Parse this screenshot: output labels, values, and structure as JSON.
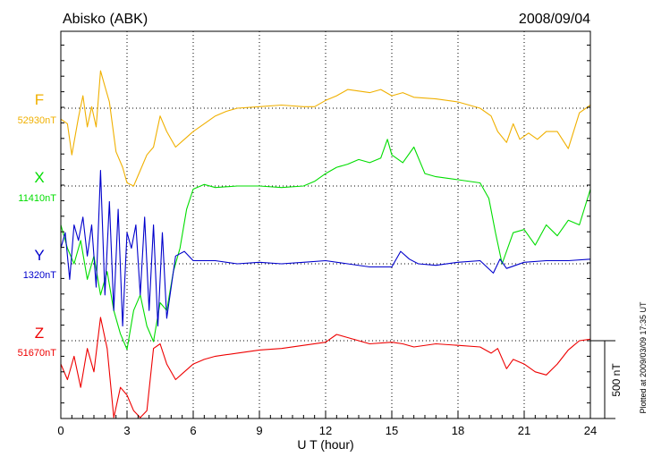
{
  "title": "Abisko (ABK)",
  "date": "2008/09/04",
  "footer_note": "Plotted at 2009/03/09 17:35 UT",
  "chart_data": {
    "type": "line",
    "xlabel": "U T (hour)",
    "xlim": [
      0,
      24
    ],
    "x_ticks": [
      0,
      3,
      6,
      9,
      12,
      15,
      18,
      21,
      24
    ],
    "x_tick_labels": [
      "0",
      "3",
      "6",
      "9",
      "12",
      "15",
      "18",
      "21",
      "24"
    ],
    "scale_bar_label": "500 nT",
    "scale_bar_nT": 500,
    "grid": true,
    "series": [
      {
        "name": "F",
        "baseline_label": "52930nT",
        "color": "#f0b000",
        "x": [
          0,
          0.3,
          0.5,
          0.8,
          1.0,
          1.2,
          1.4,
          1.6,
          1.8,
          2.0,
          2.2,
          2.5,
          2.8,
          3.0,
          3.3,
          3.6,
          3.9,
          4.2,
          4.5,
          4.8,
          5.2,
          5.6,
          6.0,
          6.5,
          7.0,
          7.5,
          8.0,
          9.0,
          10.0,
          11.0,
          11.5,
          12.0,
          12.5,
          13.0,
          14.0,
          14.5,
          15.0,
          15.5,
          16.0,
          17.0,
          18.0,
          19.0,
          19.5,
          19.8,
          20.2,
          20.5,
          20.8,
          21.2,
          21.6,
          22.0,
          22.5,
          23.0,
          23.5,
          24.0
        ],
        "y": [
          -70,
          -100,
          -300,
          -60,
          80,
          -120,
          10,
          -120,
          240,
          140,
          40,
          -280,
          -380,
          -480,
          -500,
          -400,
          -300,
          -250,
          -50,
          -150,
          -250,
          -200,
          -150,
          -100,
          -50,
          -20,
          0,
          10,
          20,
          10,
          10,
          50,
          80,
          120,
          100,
          120,
          80,
          100,
          70,
          60,
          40,
          0,
          -50,
          -150,
          -220,
          -100,
          -200,
          -160,
          -200,
          -150,
          -150,
          -260,
          -30,
          20
        ]
      },
      {
        "name": "X",
        "baseline_label": "11410nT",
        "color": "#00dd00",
        "x": [
          0,
          0.3,
          0.6,
          0.9,
          1.2,
          1.5,
          1.8,
          2.1,
          2.4,
          2.7,
          3.0,
          3.3,
          3.6,
          3.9,
          4.2,
          4.5,
          4.8,
          5.1,
          5.4,
          5.7,
          6.0,
          6.5,
          7.0,
          8.0,
          9.0,
          10.0,
          11.0,
          11.5,
          12.0,
          12.5,
          13.0,
          13.5,
          14.0,
          14.5,
          14.8,
          15.0,
          15.5,
          16.0,
          16.5,
          17.0,
          18.0,
          19.0,
          19.4,
          19.7,
          20.0,
          20.5,
          21.0,
          21.5,
          22.0,
          22.5,
          23.0,
          23.5,
          24.0
        ],
        "y": [
          -250,
          -400,
          -500,
          -350,
          -600,
          -450,
          -700,
          -550,
          -800,
          -950,
          -1050,
          -800,
          -700,
          -900,
          -1000,
          -750,
          -800,
          -550,
          -400,
          -150,
          -20,
          10,
          -10,
          0,
          0,
          -10,
          0,
          30,
          80,
          120,
          140,
          170,
          150,
          180,
          300,
          200,
          150,
          250,
          80,
          60,
          40,
          20,
          -80,
          -300,
          -500,
          -300,
          -280,
          -380,
          -250,
          -320,
          -220,
          -250,
          -20
        ]
      },
      {
        "name": "Y",
        "baseline_label": "1320nT",
        "color": "#0000cc",
        "x": [
          0,
          0.2,
          0.4,
          0.6,
          0.8,
          1.0,
          1.2,
          1.4,
          1.6,
          1.8,
          2.0,
          2.2,
          2.4,
          2.6,
          2.8,
          3.0,
          3.2,
          3.4,
          3.6,
          3.8,
          4.0,
          4.2,
          4.4,
          4.6,
          4.8,
          5.2,
          5.6,
          6.0,
          7.0,
          8.0,
          9.0,
          10.0,
          11.0,
          12.0,
          13.0,
          14.0,
          15.0,
          15.4,
          15.8,
          16.2,
          17.0,
          18.0,
          19.0,
          19.6,
          19.9,
          20.2,
          21.0,
          22.0,
          23.0,
          24.0
        ],
        "y": [
          100,
          200,
          -100,
          250,
          150,
          300,
          50,
          250,
          -150,
          600,
          -200,
          400,
          -300,
          350,
          -400,
          200,
          100,
          250,
          -200,
          300,
          -300,
          250,
          -400,
          200,
          -350,
          50,
          80,
          20,
          20,
          0,
          10,
          0,
          10,
          20,
          0,
          -20,
          -20,
          80,
          30,
          0,
          -10,
          10,
          20,
          -60,
          30,
          -30,
          10,
          20,
          20,
          30
        ]
      },
      {
        "name": "Z",
        "baseline_label": "51670nT",
        "color": "#ee0000",
        "x": [
          0,
          0.3,
          0.6,
          0.9,
          1.2,
          1.5,
          1.8,
          2.1,
          2.4,
          2.7,
          3.0,
          3.3,
          3.6,
          3.9,
          4.2,
          4.5,
          4.8,
          5.2,
          5.6,
          6.0,
          6.5,
          7.0,
          8.0,
          9.0,
          10.0,
          11.0,
          12.0,
          12.5,
          13.0,
          14.0,
          15.0,
          15.5,
          16.0,
          17.0,
          18.0,
          19.0,
          19.5,
          19.8,
          20.2,
          20.5,
          21.0,
          21.5,
          22.0,
          22.5,
          23.0,
          23.5,
          24.0
        ],
        "y": [
          -150,
          -250,
          -100,
          -300,
          -50,
          -200,
          150,
          -50,
          -500,
          -300,
          -350,
          -450,
          -500,
          -450,
          -50,
          -20,
          -150,
          -250,
          -200,
          -150,
          -120,
          -100,
          -80,
          -60,
          -50,
          -30,
          -10,
          40,
          20,
          -20,
          -10,
          -20,
          -40,
          -20,
          -30,
          -40,
          -80,
          -50,
          -180,
          -120,
          -150,
          -200,
          -220,
          -150,
          -60,
          0,
          10
        ]
      }
    ]
  }
}
